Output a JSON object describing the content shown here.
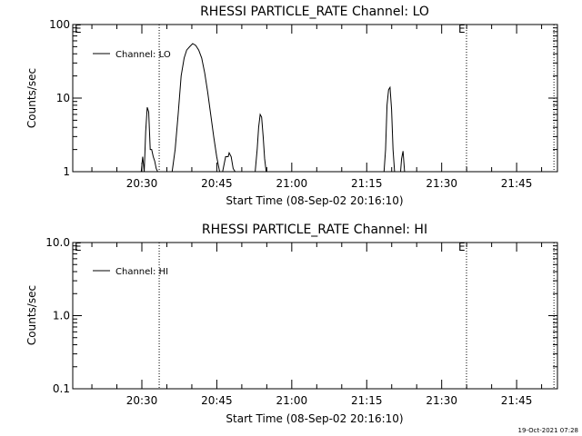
{
  "timestamp": "19-Oct-2021 07:28",
  "chart_data": [
    {
      "type": "line",
      "title": "RHESSI PARTICLE_RATE Channel: LO",
      "xlabel": "Start Time (08-Sep-02 20:16:10)",
      "ylabel": "Counts/sec",
      "yscale": "log",
      "ylim": [
        1,
        100
      ],
      "y_tick_labels": [
        "1",
        "10",
        "100"
      ],
      "y_tick_values": [
        1,
        10,
        100
      ],
      "x_unit": "minutes after 20:16:10",
      "xlim": [
        0,
        97
      ],
      "x_tick_labels": [
        "20:30",
        "20:45",
        "21:00",
        "21:15",
        "21:30",
        "21:45"
      ],
      "x_tick_values": [
        13.83,
        28.83,
        43.83,
        58.83,
        73.83,
        88.83
      ],
      "legend": "top-left",
      "grid": false,
      "event_markers": [
        {
          "x": 17.3,
          "label": "E"
        },
        {
          "x": 78.8,
          "label": ""
        },
        {
          "x": 96.3,
          "label": ""
        }
      ],
      "marker_labels": [
        "E",
        "E"
      ],
      "series": [
        {
          "name": "Channel: LO",
          "x": [
            13.7,
            14.0,
            14.3,
            14.6,
            14.9,
            15.2,
            15.5,
            15.8,
            16.1,
            16.4,
            16.7,
            17.0,
            19.9,
            20.5,
            21.1,
            21.7,
            22.3,
            22.8,
            23.4,
            24.0,
            24.6,
            25.2,
            25.8,
            26.4,
            27.0,
            27.6,
            28.2,
            28.8,
            29.4,
            30.0,
            30.6,
            31.1,
            31.3,
            31.7,
            32.1,
            32.5,
            32.8,
            36.5,
            36.9,
            37.2,
            37.5,
            37.8,
            38.1,
            38.4,
            38.7,
            62.3,
            62.6,
            62.9,
            63.2,
            63.5,
            63.8,
            64.1,
            64.4,
            65.6,
            65.8,
            66.1,
            66.4
          ],
          "y": [
            1,
            1.6,
            1,
            3.5,
            7.5,
            6.5,
            2,
            2,
            1.6,
            1.4,
            1.1,
            1,
            1,
            2,
            6,
            20,
            35,
            45,
            50,
            55,
            52,
            45,
            35,
            22,
            12,
            6,
            3,
            1.6,
            1,
            1,
            1.6,
            1.6,
            1.8,
            1.6,
            1.1,
            1,
            1,
            1,
            2,
            4,
            6,
            5.5,
            3,
            1.5,
            1,
            1,
            2,
            8,
            13,
            14,
            7,
            2,
            1,
            1,
            1.5,
            1.9,
            1
          ]
        }
      ]
    },
    {
      "type": "line",
      "title": "RHESSI PARTICLE_RATE Channel: HI",
      "xlabel": "Start Time (08-Sep-02 20:16:10)",
      "ylabel": "Counts/sec",
      "yscale": "log",
      "ylim": [
        0.1,
        10
      ],
      "y_tick_labels": [
        "0.1",
        "1.0",
        "10.0"
      ],
      "y_tick_values": [
        0.1,
        1,
        10
      ],
      "x_unit": "minutes after 20:16:10",
      "xlim": [
        0,
        97
      ],
      "x_tick_labels": [
        "20:30",
        "20:45",
        "21:00",
        "21:15",
        "21:30",
        "21:45"
      ],
      "x_tick_values": [
        13.83,
        28.83,
        43.83,
        58.83,
        73.83,
        88.83
      ],
      "legend": "top-left",
      "grid": false,
      "event_markers": [
        {
          "x": 17.3,
          "label": "E"
        },
        {
          "x": 78.8,
          "label": ""
        },
        {
          "x": 96.3,
          "label": ""
        }
      ],
      "marker_labels": [
        "E",
        "E"
      ],
      "series": [
        {
          "name": "Channel: HI",
          "x": [],
          "y": []
        }
      ]
    }
  ]
}
